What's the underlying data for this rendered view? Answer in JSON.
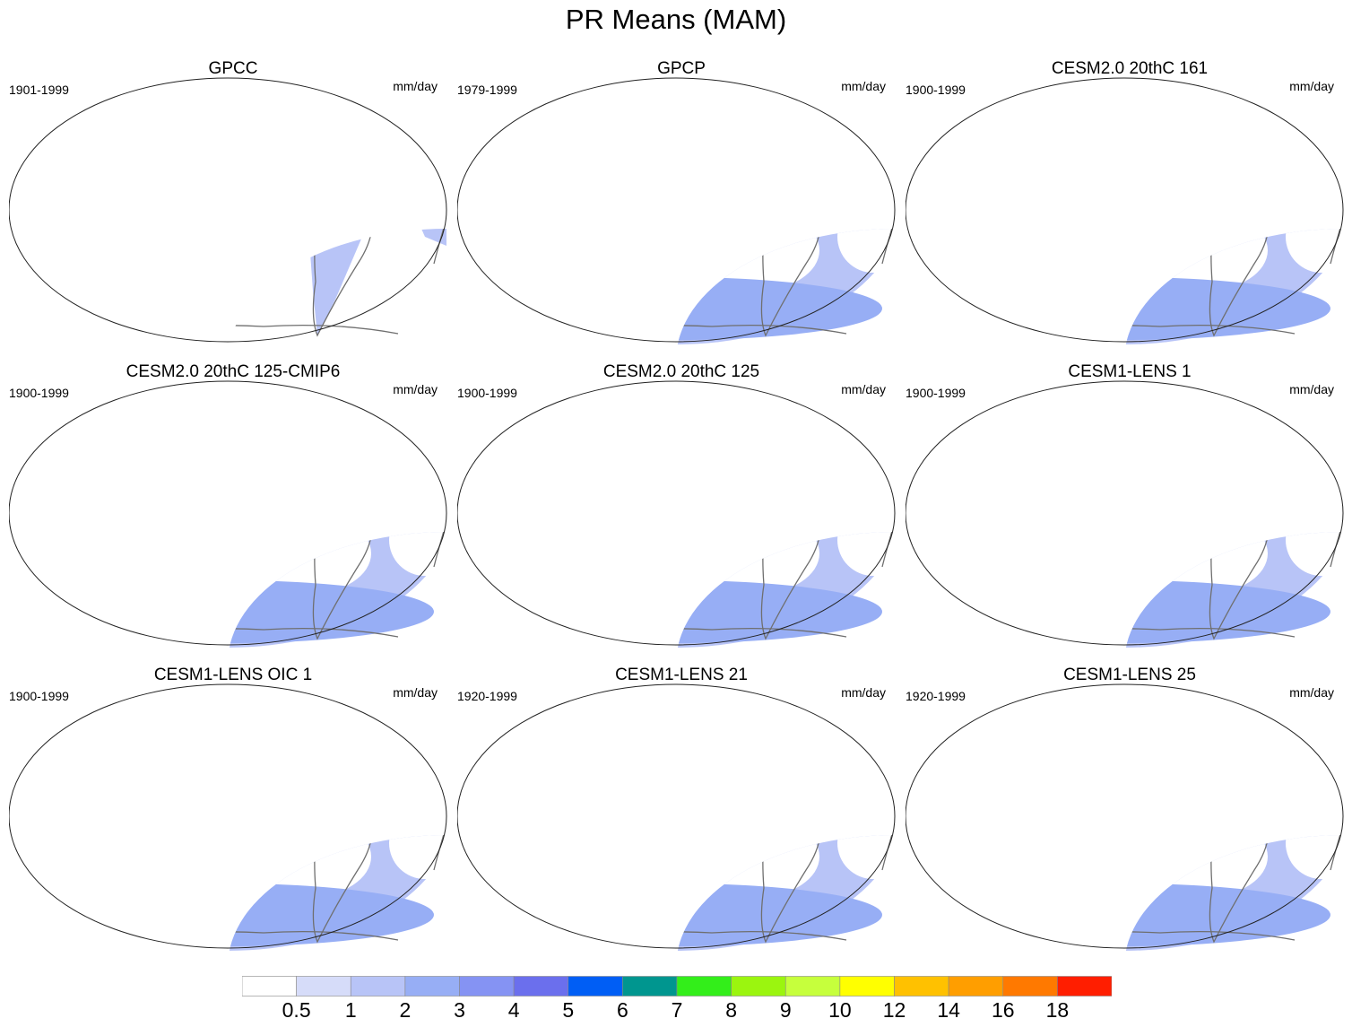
{
  "title": "PR Means (MAM)",
  "units": "mm/day",
  "panels": [
    {
      "name": "GPCC",
      "period": "1901-1999",
      "kind": "land"
    },
    {
      "name": "GPCP",
      "period": "1979-1999",
      "kind": "model"
    },
    {
      "name": "CESM2.0 20thC 161",
      "period": "1900-1999",
      "kind": "model"
    },
    {
      "name": "CESM2.0 20thC 125-CMIP6",
      "period": "1900-1999",
      "kind": "model"
    },
    {
      "name": "CESM2.0 20thC 125",
      "period": "1900-1999",
      "kind": "model"
    },
    {
      "name": "CESM1-LENS 1",
      "period": "1900-1999",
      "kind": "model"
    },
    {
      "name": "CESM1-LENS OIC 1",
      "period": "1900-1999",
      "kind": "model"
    },
    {
      "name": "CESM1-LENS 21",
      "period": "1920-1999",
      "kind": "model"
    },
    {
      "name": "CESM1-LENS 25",
      "period": "1920-1999",
      "kind": "model"
    }
  ],
  "colorbar": {
    "colors": [
      "#ffffff",
      "#d6dcf9",
      "#b8c4f7",
      "#97aef5",
      "#8593f3",
      "#6b6fed",
      "#005ef5",
      "#00968f",
      "#33ee1a",
      "#9bf50f",
      "#c6ff3c",
      "#ffff00",
      "#ffc100",
      "#ff9e00",
      "#ff7900",
      "#ff1e00"
    ],
    "labels": [
      "0.5",
      "1",
      "2",
      "3",
      "4",
      "5",
      "6",
      "7",
      "8",
      "9",
      "10",
      "12",
      "14",
      "16",
      "18"
    ]
  },
  "map_colors": {
    "coast": "#6f6f6f",
    "border": "#222222"
  }
}
